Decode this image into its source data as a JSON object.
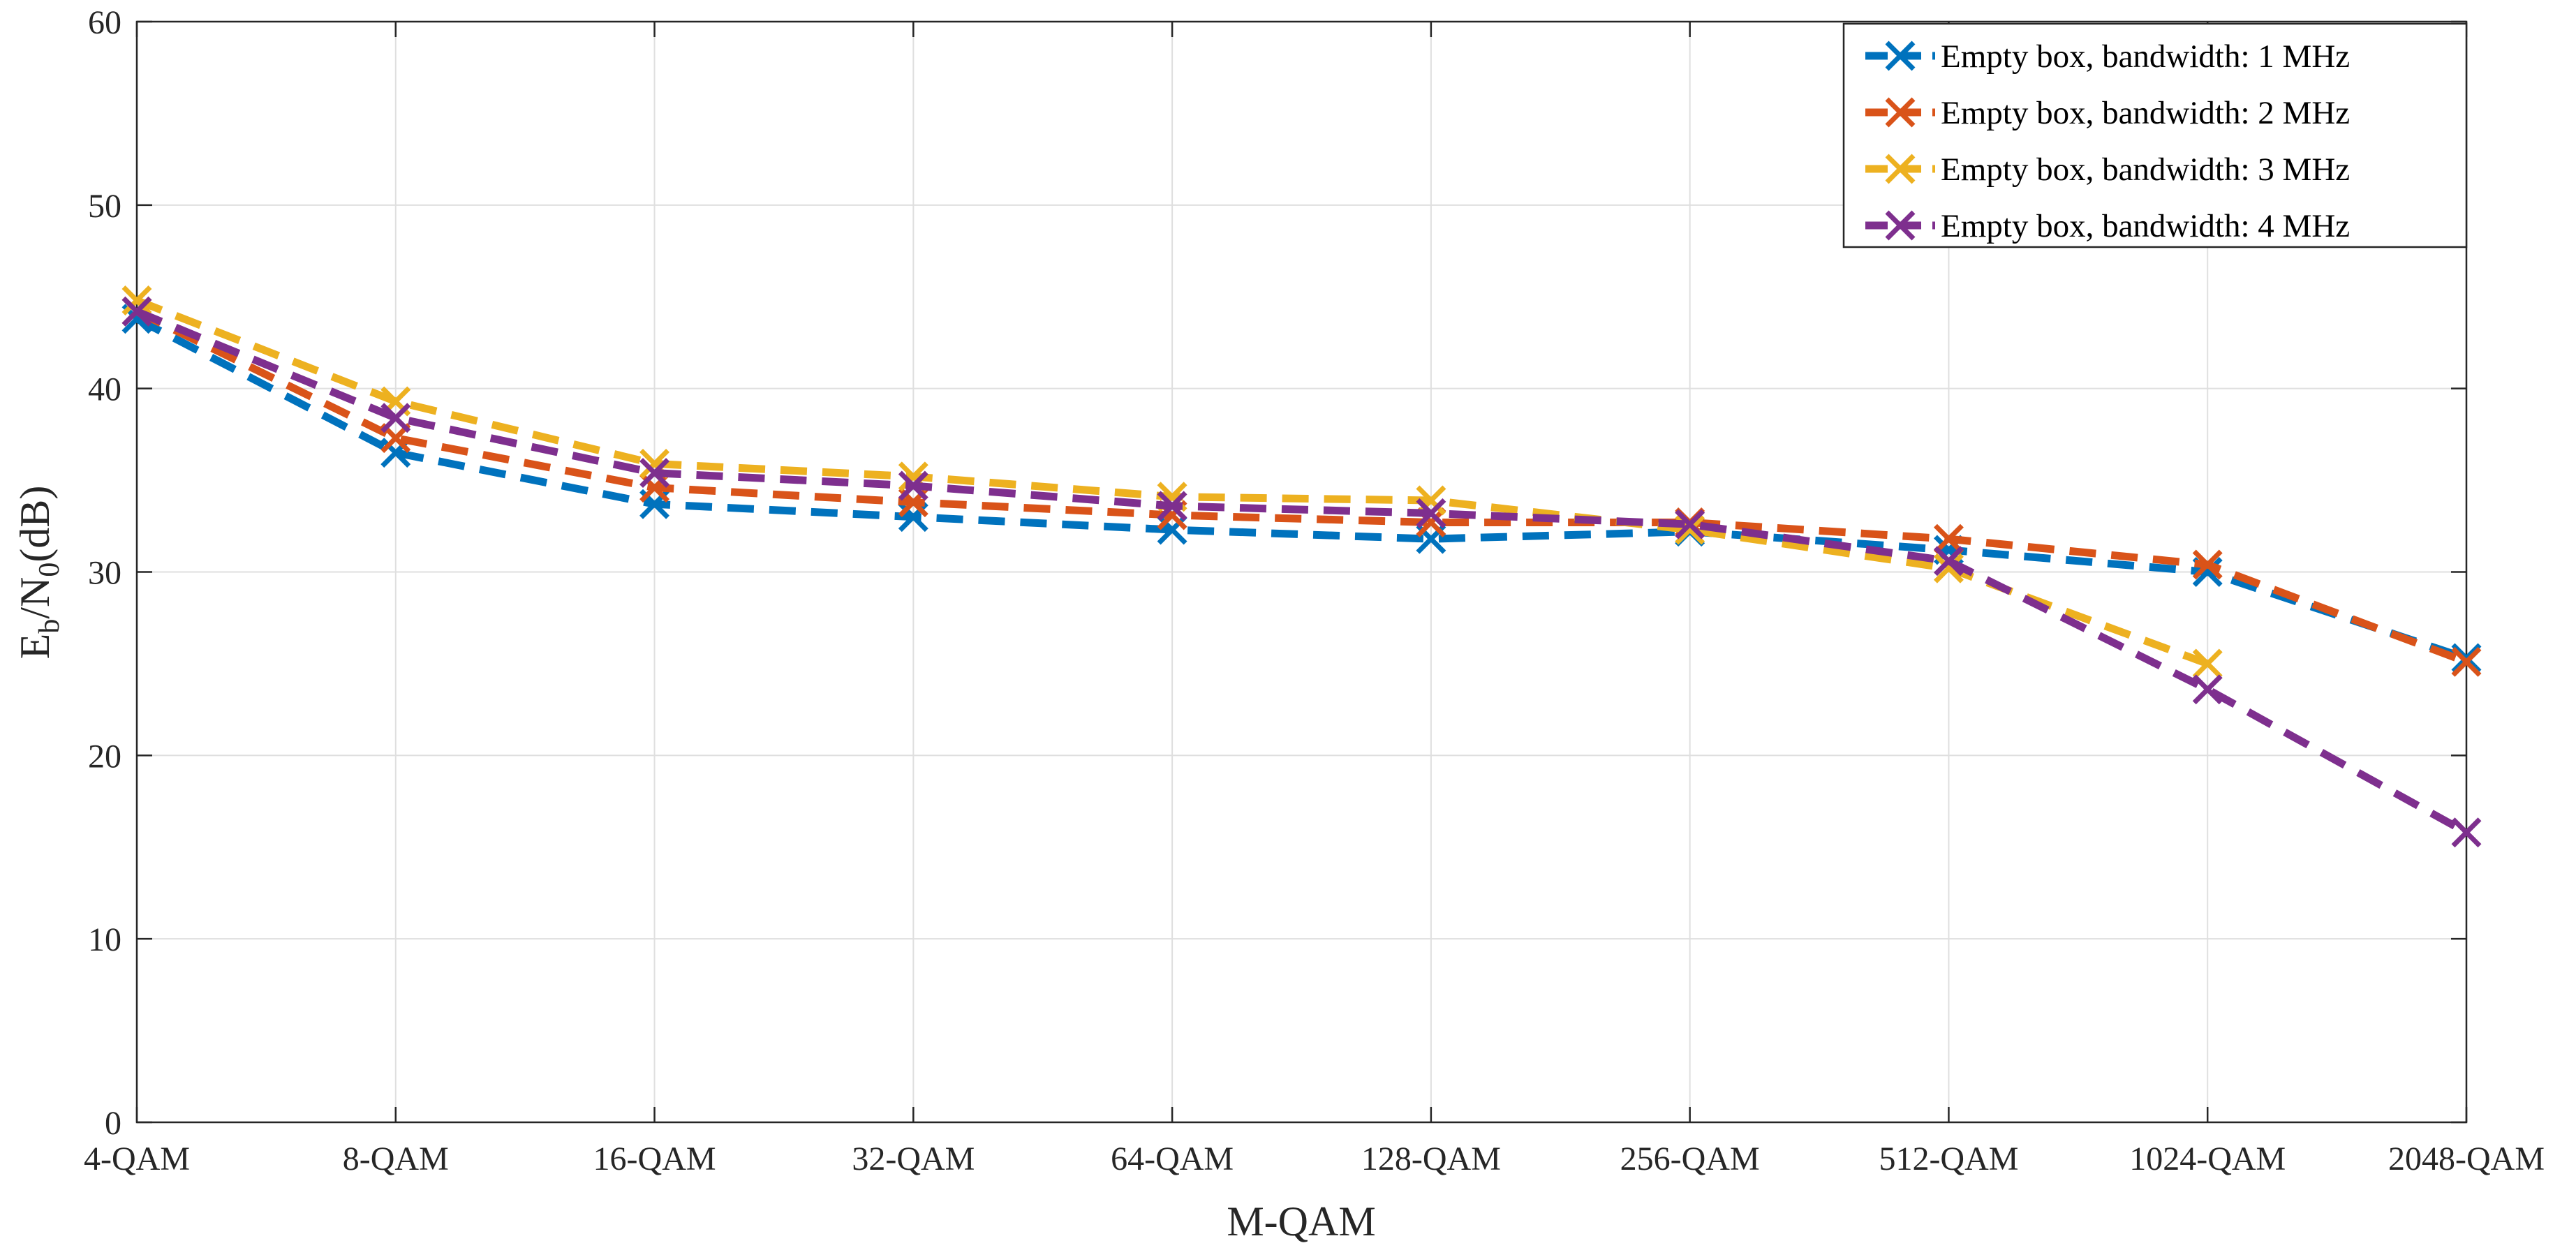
{
  "chart_data": {
    "type": "line",
    "xlabel": "M-QAM",
    "ylabel_main": "E",
    "ylabel_sub1": "b",
    "ylabel_mid": "/N",
    "ylabel_sub2": "0",
    "ylabel_tail": "(dB)",
    "ylim": [
      0,
      60
    ],
    "yticks": [
      "0",
      "10",
      "20",
      "30",
      "40",
      "50",
      "60"
    ],
    "grid": true,
    "legend_position": "top-right",
    "categories": [
      "4-QAM",
      "8-QAM",
      "16-QAM",
      "32-QAM",
      "64-QAM",
      "128-QAM",
      "256-QAM",
      "512-QAM",
      "1024-QAM",
      "2048-QAM"
    ],
    "series": [
      {
        "name": "Empty box, bandwidth: 1 MHz",
        "color": "#0072bd",
        "values": [
          43.8,
          36.5,
          33.7,
          33.0,
          32.3,
          31.8,
          32.2,
          31.2,
          30.0,
          25.3
        ]
      },
      {
        "name": "Empty box, bandwidth: 2 MHz",
        "color": "#d95319",
        "values": [
          44.2,
          37.3,
          34.6,
          33.8,
          33.1,
          32.7,
          32.7,
          31.8,
          30.4,
          25.1
        ]
      },
      {
        "name": "Empty box, bandwidth: 3 MHz",
        "color": "#edb120",
        "values": [
          44.8,
          39.3,
          35.9,
          35.2,
          34.1,
          33.9,
          32.3,
          30.2,
          25.0,
          null
        ]
      },
      {
        "name": "Empty box, bandwidth: 4 MHz",
        "color": "#7e2f8e",
        "values": [
          44.2,
          38.4,
          35.4,
          34.7,
          33.6,
          33.2,
          32.6,
          30.6,
          23.6,
          15.8
        ]
      }
    ]
  }
}
